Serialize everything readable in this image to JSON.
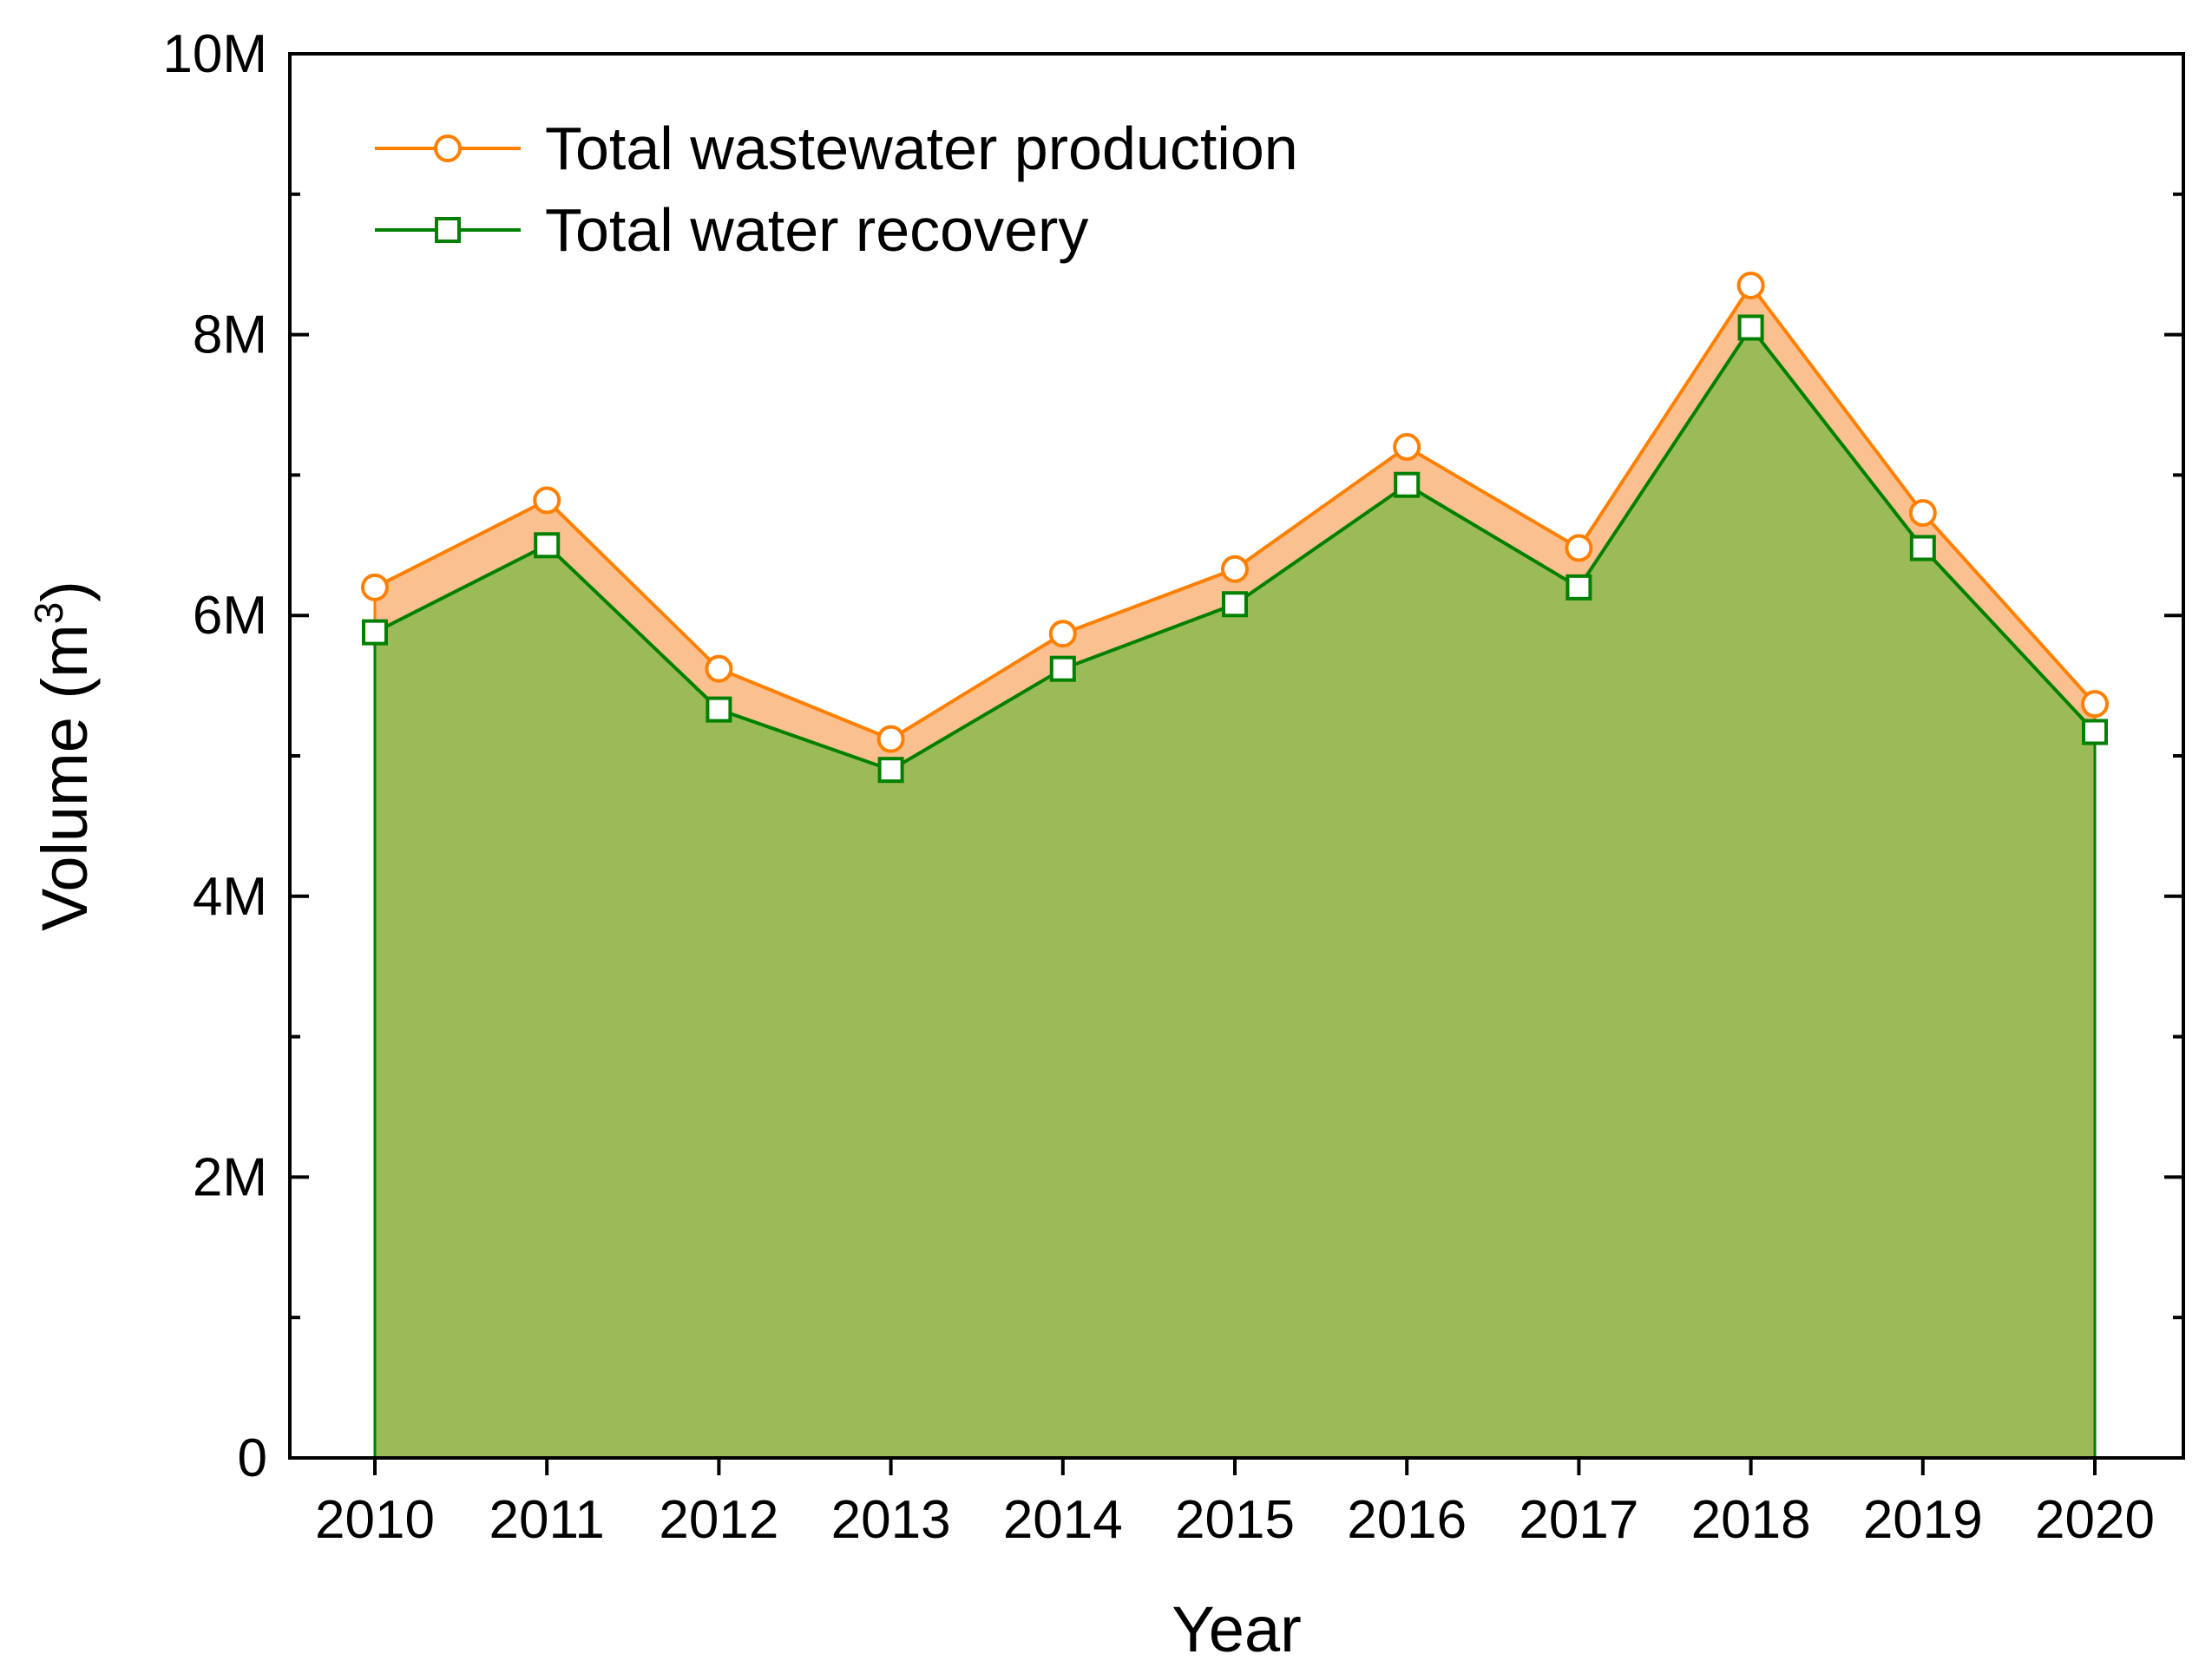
{
  "chart_data": {
    "type": "area",
    "title": "",
    "xlabel": "Year",
    "ylabel": "Volume (m",
    "ylabel_superscript": "3",
    "ylabel_suffix": ")",
    "categories": [
      "2010",
      "2011",
      "2012",
      "2013",
      "2014",
      "2015",
      "2016",
      "2017",
      "2018",
      "2019",
      "2020"
    ],
    "ylim": [
      0,
      10000000
    ],
    "yticks": [
      {
        "value": 0,
        "label": "0"
      },
      {
        "value": 2000000,
        "label": "2M"
      },
      {
        "value": 4000000,
        "label": "4M"
      },
      {
        "value": 6000000,
        "label": "6M"
      },
      {
        "value": 8000000,
        "label": "8M"
      },
      {
        "value": 10000000,
        "label": "10M"
      }
    ],
    "y_minor_step": 1000000,
    "grid": false,
    "legend_position": "top-left",
    "series": [
      {
        "name": "Total wastewater production",
        "marker": "circle",
        "line_color": "#ff8000",
        "fill_color": "#fac090",
        "values": [
          6200000,
          6820000,
          5620000,
          5120000,
          5870000,
          6330000,
          7200000,
          6480000,
          8350000,
          6730000,
          5370000
        ]
      },
      {
        "name": "Total water recovery",
        "marker": "square",
        "line_color": "#008000",
        "fill_color": "#9bbb59",
        "values": [
          5880000,
          6500000,
          5330000,
          4900000,
          5620000,
          6080000,
          6930000,
          6200000,
          8050000,
          6480000,
          5170000
        ]
      }
    ]
  }
}
